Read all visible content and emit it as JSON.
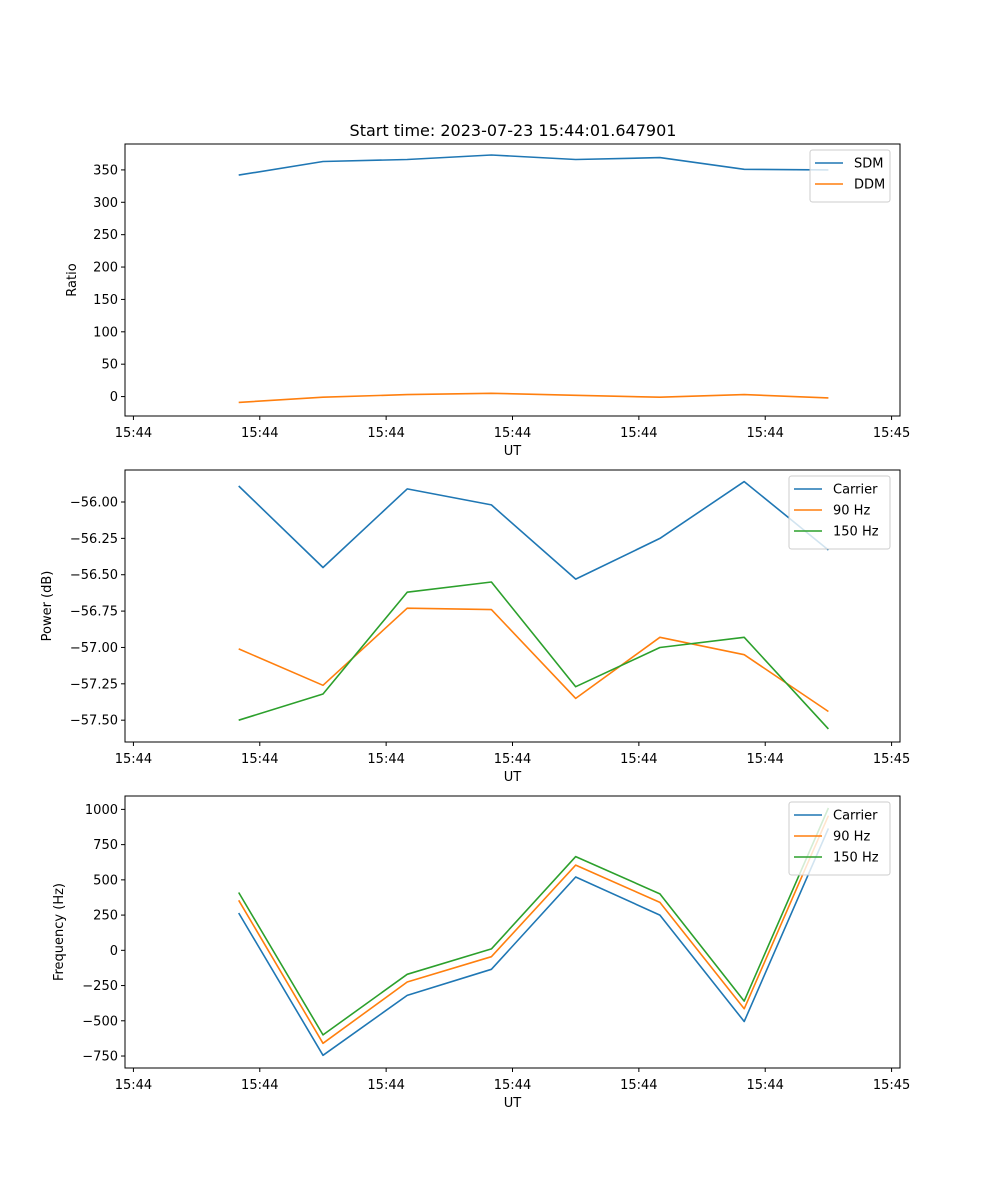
{
  "figure": {
    "title": "Start time: 2023-07-23 15:44:01.647901"
  },
  "chart_data": [
    {
      "type": "line",
      "title": "Start time: 2023-07-23 15:44:01.647901",
      "xlabel": "UT",
      "ylabel": "Ratio",
      "xlim": [
        -0.6,
        8.6
      ],
      "x": [
        0.75,
        1.75,
        2.75,
        3.75,
        4.75,
        5.75,
        6.75,
        7.75
      ],
      "ylim": [
        -30,
        390
      ],
      "yticks": [
        0,
        50,
        100,
        150,
        200,
        250,
        300,
        350
      ],
      "yticklabels": [
        "0",
        "50",
        "100",
        "150",
        "200",
        "250",
        "300",
        "350"
      ],
      "xticks": [
        -0.5,
        1.0,
        2.5,
        4.0,
        5.5,
        7.0,
        8.5
      ],
      "xticklabels": [
        "15:44",
        "15:44",
        "15:44",
        "15:44",
        "15:44",
        "15:44",
        "15:45"
      ],
      "legend_position": "top-right",
      "series": [
        {
          "name": "SDM",
          "color": "#1f77b4",
          "values": [
            342,
            363,
            366,
            373,
            366,
            369,
            351,
            350
          ]
        },
        {
          "name": "DDM",
          "color": "#ff7f0e",
          "values": [
            -9,
            -1,
            3,
            5,
            2,
            -1,
            3,
            -2
          ]
        }
      ]
    },
    {
      "type": "line",
      "title": "",
      "xlabel": "UT",
      "ylabel": "Power (dB)",
      "xlim": [
        -0.6,
        8.6
      ],
      "x": [
        0.75,
        1.75,
        2.75,
        3.75,
        4.75,
        5.75,
        6.75,
        7.75
      ],
      "ylim": [
        -57.65,
        -55.78
      ],
      "yticks": [
        -56.0,
        -56.25,
        -56.5,
        -56.75,
        -57.0,
        -57.25,
        -57.5
      ],
      "yticklabels": [
        "−56.00",
        "−56.25",
        "−56.50",
        "−56.75",
        "−57.00",
        "−57.25",
        "−57.50"
      ],
      "xticks": [
        -0.5,
        1.0,
        2.5,
        4.0,
        5.5,
        7.0,
        8.5
      ],
      "xticklabels": [
        "15:44",
        "15:44",
        "15:44",
        "15:44",
        "15:44",
        "15:44",
        "15:45"
      ],
      "legend_position": "top-right",
      "series": [
        {
          "name": "Carrier",
          "color": "#1f77b4",
          "values": [
            -55.89,
            -56.45,
            -55.91,
            -56.02,
            -56.53,
            -56.25,
            -55.86,
            -56.33
          ]
        },
        {
          "name": "90 Hz",
          "color": "#ff7f0e",
          "values": [
            -57.01,
            -57.26,
            -56.73,
            -56.74,
            -57.35,
            -56.93,
            -57.05,
            -57.44
          ]
        },
        {
          "name": "150 Hz",
          "color": "#2ca02c",
          "values": [
            -57.5,
            -57.32,
            -56.62,
            -56.55,
            -57.27,
            -57.0,
            -56.93,
            -57.56
          ]
        }
      ]
    },
    {
      "type": "line",
      "title": "",
      "xlabel": "UT",
      "ylabel": "Frequency (Hz)",
      "xlim": [
        -0.6,
        8.6
      ],
      "x": [
        0.75,
        1.75,
        2.75,
        3.75,
        4.75,
        5.75,
        6.75,
        7.75
      ],
      "ylim": [
        -835,
        1095
      ],
      "yticks": [
        -750,
        -500,
        -250,
        0,
        250,
        500,
        750,
        1000
      ],
      "yticklabels": [
        "−750",
        "−500",
        "−250",
        "0",
        "250",
        "500",
        "750",
        "1000"
      ],
      "xticks": [
        -0.5,
        1.0,
        2.5,
        4.0,
        5.5,
        7.0,
        8.5
      ],
      "xticklabels": [
        "15:44",
        "15:44",
        "15:44",
        "15:44",
        "15:44",
        "15:44",
        "15:45"
      ],
      "legend_position": "top-right",
      "series": [
        {
          "name": "Carrier",
          "color": "#1f77b4",
          "values": [
            265,
            -745,
            -320,
            -135,
            520,
            250,
            -505,
            865
          ]
        },
        {
          "name": "90 Hz",
          "color": "#ff7f0e",
          "values": [
            355,
            -660,
            -225,
            -45,
            605,
            340,
            -415,
            955
          ]
        },
        {
          "name": "150 Hz",
          "color": "#2ca02c",
          "values": [
            410,
            -600,
            -170,
            10,
            665,
            400,
            -360,
            1010
          ]
        }
      ]
    }
  ]
}
